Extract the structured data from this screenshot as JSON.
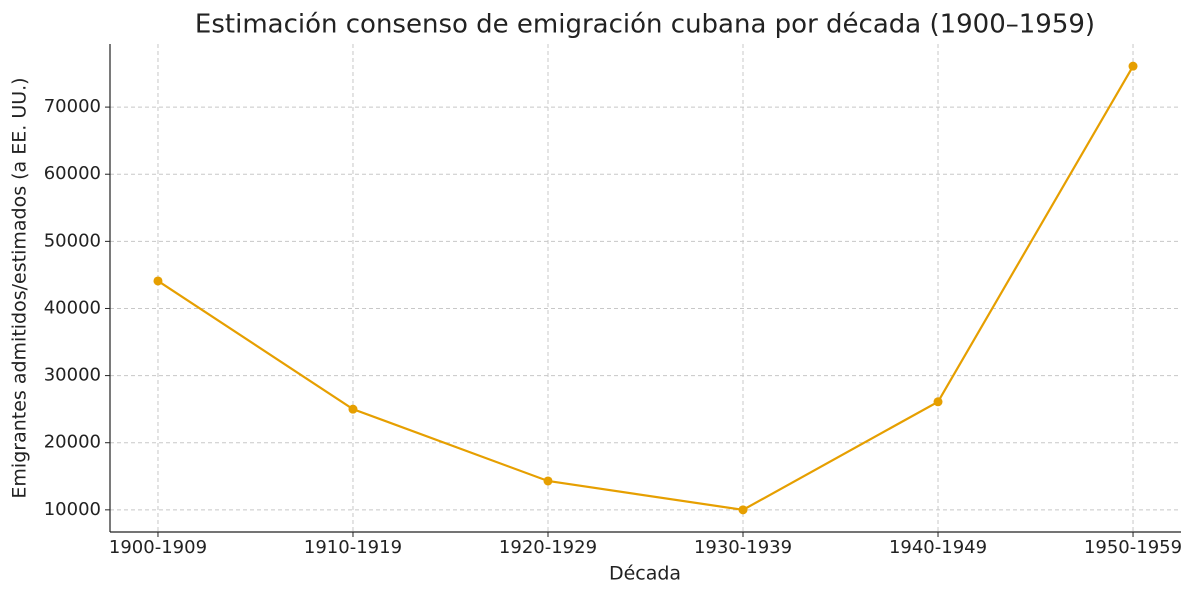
{
  "chart_data": {
    "type": "line",
    "title": "Estimación consenso de emigración cubana por década (1900–1959)",
    "x_label": "Década",
    "y_label": "Emigrantes admitidos/estimados (a EE. UU.)",
    "categories": [
      "1900-1909",
      "1910-1919",
      "1920-1929",
      "1930-1939",
      "1940-1949",
      "1950-1959"
    ],
    "series": [
      {
        "name": "Emigrantes",
        "color": "#e69f00",
        "values": [
          44100,
          25000,
          14300,
          10000,
          26100,
          76100
        ]
      }
    ],
    "ylim": [
      6700,
      79400
    ],
    "yticks": [
      10000,
      20000,
      30000,
      40000,
      50000,
      60000,
      70000
    ],
    "grid": true
  }
}
